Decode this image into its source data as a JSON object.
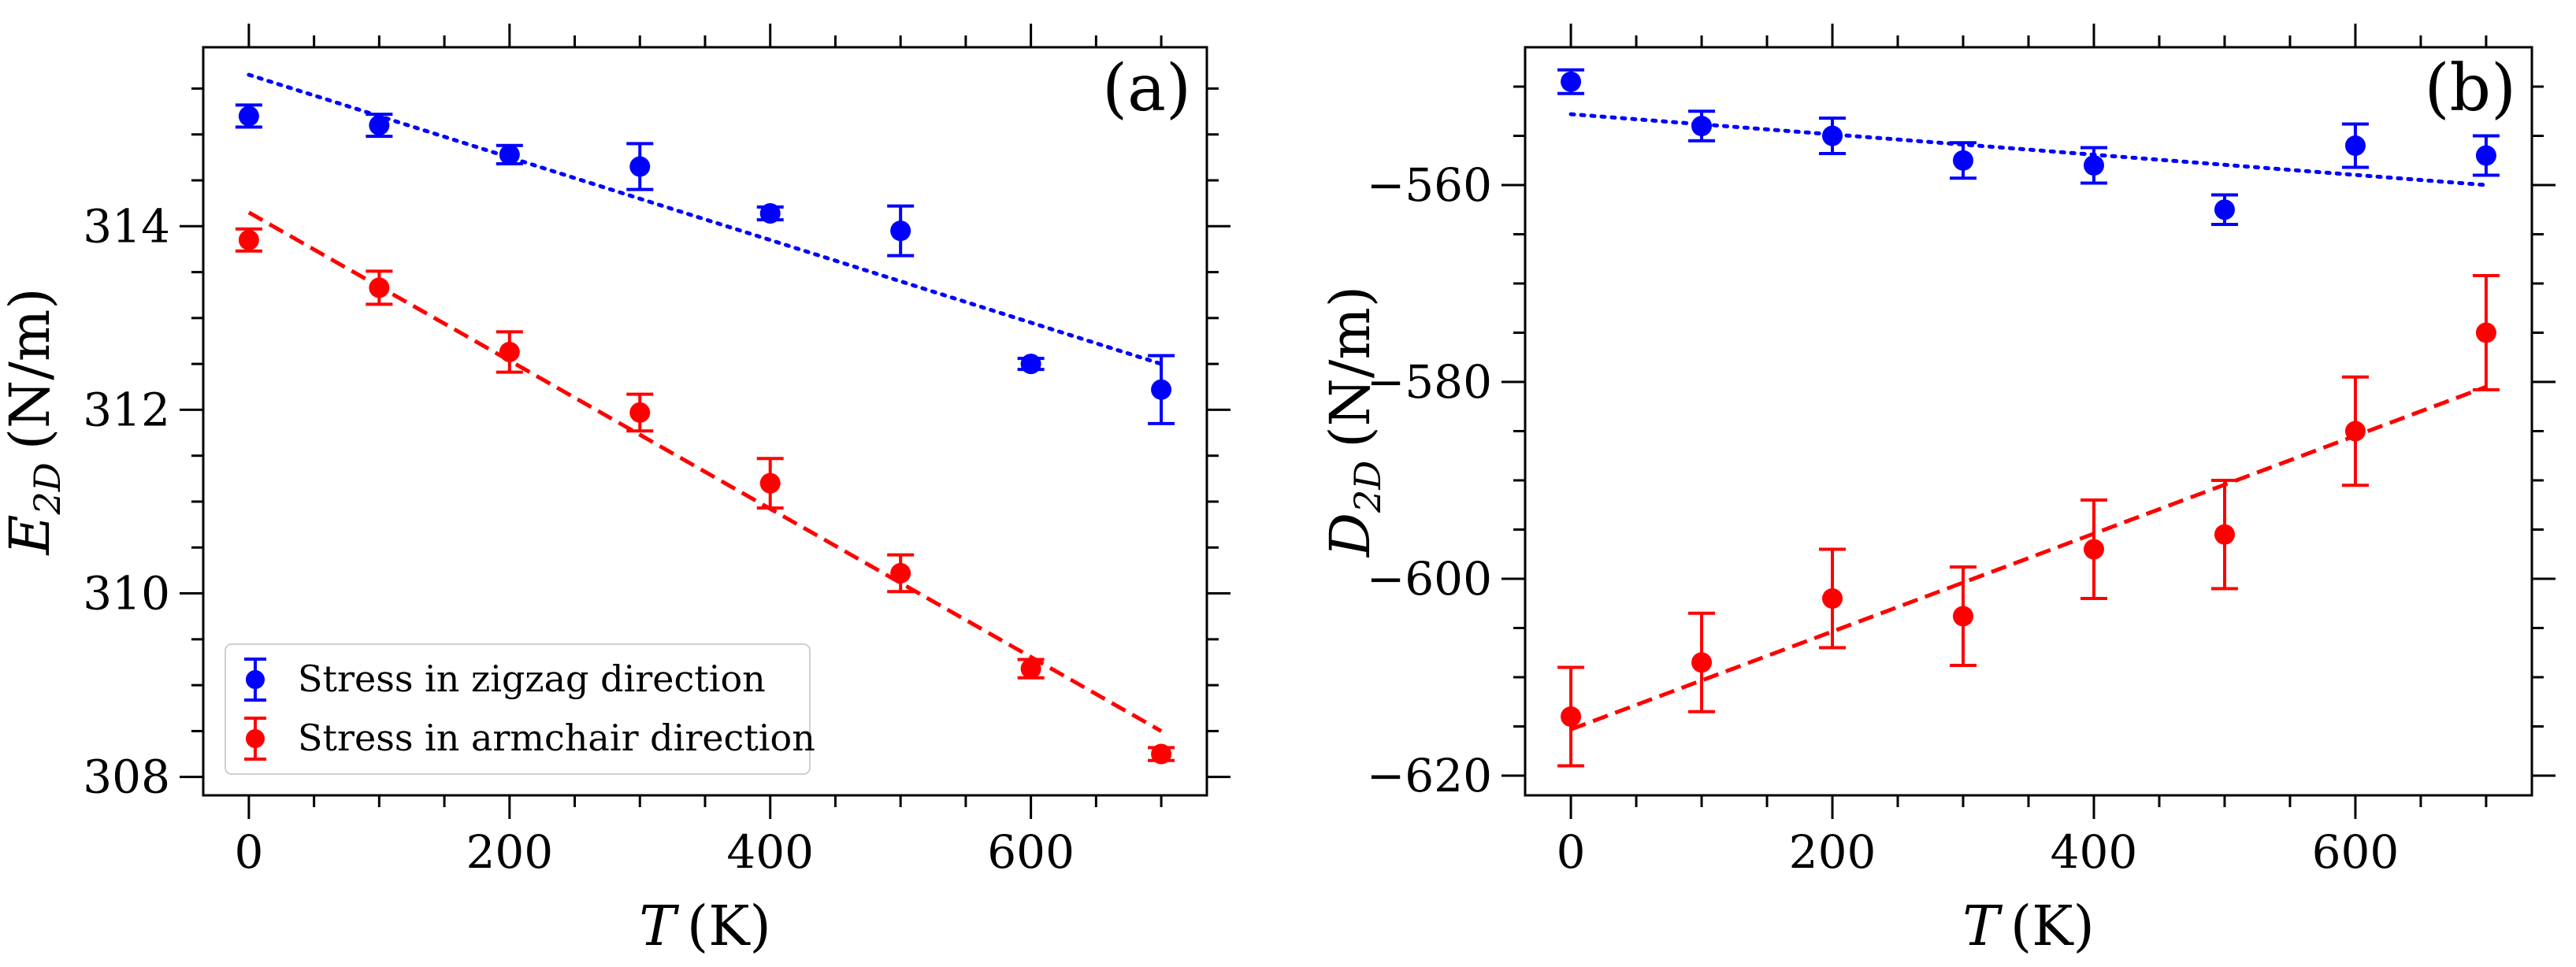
{
  "chart_data": [
    {
      "type": "scatter",
      "panel_label": "(a)",
      "xlabel": {
        "symbol": "T",
        "unit": "(K)"
      },
      "ylabel": {
        "symbol": "E",
        "sub": "2D",
        "unit": "(N/m)"
      },
      "xlim": [
        -35,
        735
      ],
      "ylim": [
        307.8,
        315.95
      ],
      "xticks": [
        0,
        200,
        400,
        600
      ],
      "xtick_labels": [
        "0",
        "200",
        "400",
        "600"
      ],
      "yticks": [
        308,
        310,
        312,
        314
      ],
      "ytick_labels": [
        "308",
        "310",
        "312",
        "314"
      ],
      "legend": {
        "placement": "lower-left",
        "entries": [
          "Stress in zigzag direction",
          "Stress in armchair direction"
        ]
      },
      "series": [
        {
          "name": "Stress in zigzag direction",
          "color": "#0000ff",
          "x": [
            0,
            100,
            200,
            300,
            400,
            500,
            600,
            700
          ],
          "y": [
            315.2,
            315.1,
            314.78,
            314.65,
            314.14,
            313.95,
            312.5,
            312.22
          ],
          "err": [
            0.12,
            0.12,
            0.1,
            0.25,
            0.07,
            0.27,
            0.06,
            0.37
          ],
          "fit": {
            "style": "dotted",
            "x": [
              0,
              700
            ],
            "y": [
              315.65,
              312.5
            ]
          }
        },
        {
          "name": "Stress in armchair direction",
          "color": "#ff0000",
          "x": [
            0,
            100,
            200,
            300,
            400,
            500,
            600,
            700
          ],
          "y": [
            313.85,
            313.33,
            312.63,
            311.97,
            311.2,
            310.22,
            309.18,
            308.25
          ],
          "err": [
            0.12,
            0.18,
            0.22,
            0.2,
            0.27,
            0.2,
            0.1,
            0.07
          ],
          "fit": {
            "style": "dashed",
            "x": [
              0,
              700
            ],
            "y": [
              314.15,
              308.5
            ]
          }
        }
      ]
    },
    {
      "type": "scatter",
      "panel_label": "(b)",
      "xlabel": {
        "symbol": "T",
        "unit": "(K)"
      },
      "ylabel": {
        "symbol": "D",
        "sub": "2D",
        "unit": "(N/m)"
      },
      "xlim": [
        -35,
        735
      ],
      "ylim": [
        -622,
        -546
      ],
      "xticks": [
        0,
        200,
        400,
        600
      ],
      "xtick_labels": [
        "0",
        "200",
        "400",
        "600"
      ],
      "yticks": [
        -620,
        -600,
        -580,
        -560
      ],
      "ytick_labels": [
        "−620",
        "−600",
        "−580",
        "−560"
      ],
      "series": [
        {
          "name": "Stress in zigzag direction",
          "color": "#0000ff",
          "x": [
            0,
            100,
            200,
            300,
            400,
            500,
            600,
            700
          ],
          "y": [
            -549.5,
            -554,
            -555,
            -557.5,
            -558,
            -562.5,
            -556,
            -557
          ],
          "err": [
            1.2,
            1.5,
            1.8,
            1.8,
            1.8,
            1.5,
            2.2,
            2
          ],
          "fit": {
            "style": "dotted",
            "x": [
              0,
              700
            ],
            "y": [
              -552.8,
              -560
            ]
          }
        },
        {
          "name": "Stress in armchair direction",
          "color": "#ff0000",
          "x": [
            0,
            100,
            200,
            300,
            400,
            500,
            600,
            700
          ],
          "y": [
            -614,
            -608.5,
            -602,
            -603.8,
            -597,
            -595.5,
            -585,
            -575
          ],
          "err": [
            5,
            5,
            5,
            5,
            5,
            5.5,
            5.5,
            5.8
          ],
          "fit": {
            "style": "dashed",
            "x": [
              0,
              700
            ],
            "y": [
              -615.3,
              -580.5
            ]
          }
        }
      ]
    }
  ]
}
